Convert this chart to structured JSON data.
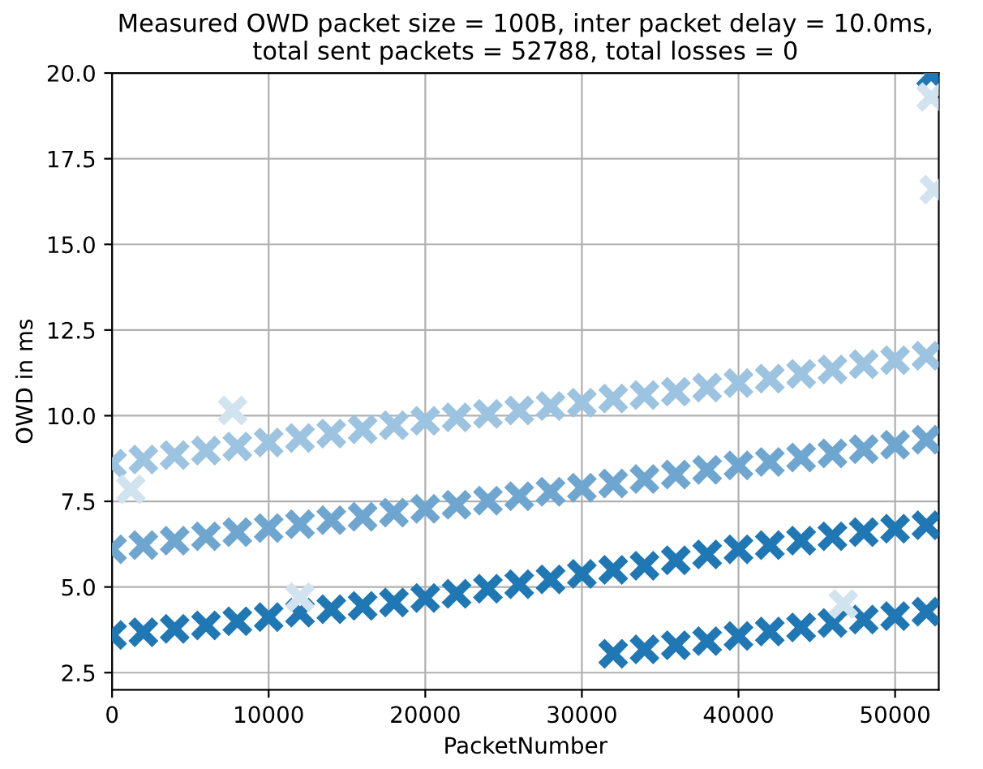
{
  "chart_data": {
    "type": "scatter",
    "title": "Measured OWD packet size = 100B, inter packet delay = 10.0ms,\ntotal sent packets = 52788, total losses = 0",
    "xlabel": "PacketNumber",
    "ylabel": "OWD in ms",
    "xlim": [
      0,
      52788
    ],
    "ylim": [
      2.0,
      20.0
    ],
    "xticks": [
      0,
      10000,
      20000,
      30000,
      40000,
      50000
    ],
    "yticks": [
      {
        "value": 2.5,
        "label": "2.5"
      },
      {
        "value": 5.0,
        "label": "5.0"
      },
      {
        "value": 7.5,
        "label": "7.5"
      },
      {
        "value": 10.0,
        "label": "10.0"
      },
      {
        "value": 12.5,
        "label": "12.5"
      },
      {
        "value": 15.0,
        "label": "15.0"
      },
      {
        "value": 17.5,
        "label": "17.5"
      },
      {
        "value": 20.0,
        "label": "20.0"
      }
    ],
    "grid": true,
    "marker": "cross",
    "series": [
      {
        "color": "#9cc3e0",
        "x": [
          0,
          2000,
          4000,
          6000,
          8000,
          10000,
          12000,
          14000,
          16000,
          18000,
          20000,
          22000,
          24000,
          26000,
          28000,
          30000,
          32000,
          34000,
          36000,
          38000,
          40000,
          42000,
          44000,
          46000,
          48000,
          50000,
          52000
        ],
        "values": [
          8.6,
          8.72,
          8.85,
          8.98,
          9.1,
          9.22,
          9.35,
          9.48,
          9.6,
          9.72,
          9.85,
          9.95,
          10.05,
          10.15,
          10.28,
          10.38,
          10.5,
          10.6,
          10.7,
          10.82,
          10.95,
          11.08,
          11.22,
          11.35,
          11.5,
          11.62,
          11.75
        ]
      },
      {
        "color": "#6fa6d0",
        "x": [
          0,
          2000,
          4000,
          6000,
          8000,
          10000,
          12000,
          14000,
          16000,
          18000,
          20000,
          22000,
          24000,
          26000,
          28000,
          30000,
          32000,
          34000,
          36000,
          38000,
          40000,
          42000,
          44000,
          46000,
          48000,
          50000,
          52000
        ],
        "values": [
          6.1,
          6.22,
          6.35,
          6.48,
          6.6,
          6.72,
          6.83,
          6.95,
          7.05,
          7.17,
          7.28,
          7.4,
          7.52,
          7.65,
          7.78,
          7.9,
          8.02,
          8.15,
          8.28,
          8.42,
          8.55,
          8.65,
          8.78,
          8.9,
          9.02,
          9.15,
          9.3
        ]
      },
      {
        "color": "#1f77b4",
        "x": [
          0,
          2000,
          4000,
          6000,
          8000,
          10000,
          12000,
          14000,
          16000,
          18000,
          20000,
          22000,
          24000,
          26000,
          28000,
          30000,
          32000,
          34000,
          36000,
          38000,
          40000,
          42000,
          44000,
          46000,
          48000,
          50000,
          52000
        ],
        "values": [
          3.6,
          3.68,
          3.78,
          3.88,
          4.0,
          4.12,
          4.25,
          4.35,
          4.45,
          4.55,
          4.68,
          4.8,
          4.95,
          5.08,
          5.22,
          5.38,
          5.5,
          5.62,
          5.78,
          5.95,
          6.1,
          6.22,
          6.35,
          6.48,
          6.6,
          6.7,
          6.8
        ]
      },
      {
        "color": "#1f77b4",
        "x": [
          32000,
          34000,
          36000,
          38000,
          40000,
          42000,
          44000,
          46000,
          48000,
          50000,
          52000,
          52300
        ],
        "values": [
          3.05,
          3.18,
          3.3,
          3.42,
          3.57,
          3.7,
          3.82,
          3.95,
          4.05,
          4.15,
          4.28,
          19.95
        ]
      },
      {
        "color": "#d2e3f0",
        "x": [
          1200,
          7700,
          12000,
          46700,
          52300,
          52500
        ],
        "values": [
          7.85,
          10.15,
          4.7,
          4.5,
          19.3,
          16.6
        ]
      }
    ]
  }
}
